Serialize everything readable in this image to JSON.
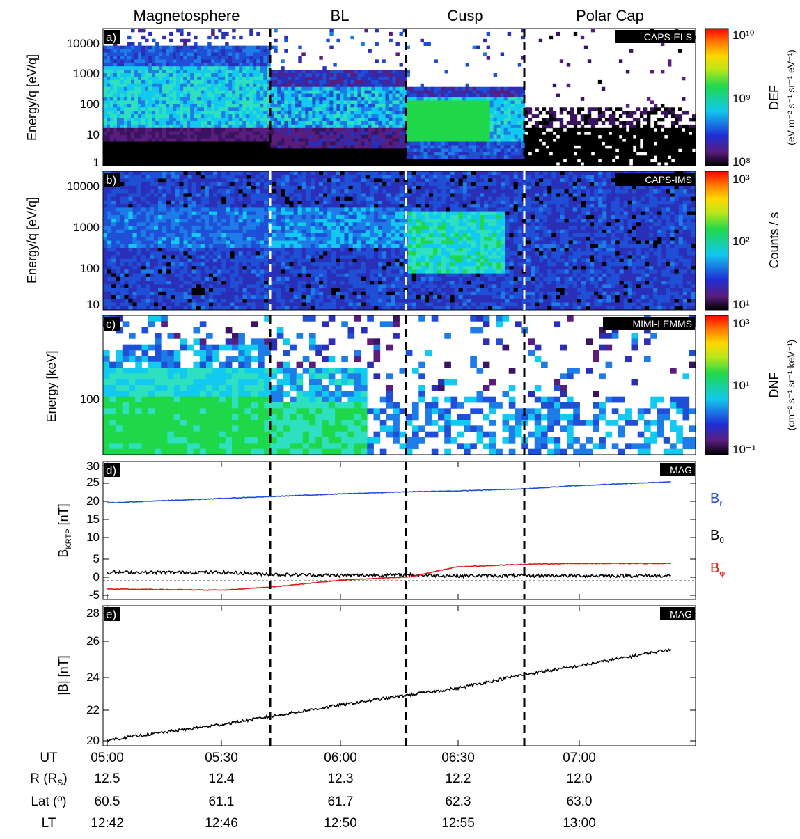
{
  "regions": [
    "Magnetosphere",
    "BL",
    "Cusp",
    "Polar Cap"
  ],
  "panels": [
    {
      "id": "a",
      "tag": "a)",
      "instrument": "CAPS-ELS",
      "ylabel": "Energy/q [eV/q]",
      "yticks": [
        "10000",
        "1000",
        "100",
        "10",
        "1"
      ],
      "colorbar": {
        "label": "DEF",
        "units": "(eV m⁻² s⁻¹ sr⁻¹ eV⁻¹)",
        "ticks": [
          "10¹⁰",
          "10⁹",
          "10⁸"
        ]
      }
    },
    {
      "id": "b",
      "tag": "b)",
      "instrument": "CAPS-IMS",
      "ylabel": "Energy/q [eV/q]",
      "yticks": [
        "10000",
        "1000",
        "100",
        "10"
      ],
      "colorbar": {
        "label": "Counts / s",
        "units": "",
        "ticks": [
          "10³",
          "10²",
          "10¹"
        ]
      }
    },
    {
      "id": "c",
      "tag": "c)",
      "instrument": "MIMI-LEMMS",
      "ylabel": "Energy [keV]",
      "yticks": [
        "100"
      ],
      "colorbar": {
        "label": "DNF",
        "units": "(cm⁻² s⁻¹ sr⁻¹ keV⁻¹)",
        "ticks": [
          "10³",
          "10¹",
          "10⁻¹"
        ]
      }
    },
    {
      "id": "d",
      "tag": "d)",
      "instrument": "MAG",
      "ylabel": "B",
      "ylabel_sub": "KRTP",
      "ylabel_unit": " [nT]",
      "yticks": [
        "30",
        "25",
        "20",
        "15",
        "10",
        "5",
        "0",
        "-5"
      ]
    },
    {
      "id": "e",
      "tag": "e)",
      "instrument": "MAG",
      "ylabel": "|B| [nT]",
      "yticks": [
        "28",
        "26",
        "24",
        "22",
        "20"
      ]
    }
  ],
  "legend_mag": [
    {
      "name": "B",
      "sub": "r",
      "color": "#1f4fd6"
    },
    {
      "name": "B",
      "sub": "θ",
      "color": "#000000"
    },
    {
      "name": "B",
      "sub": "φ",
      "color": "#e01818"
    }
  ],
  "xaxis": {
    "rows": [
      {
        "label": "UT",
        "values": [
          "05:00",
          "05:30",
          "06:00",
          "06:30",
          "07:00"
        ]
      },
      {
        "label": "R (R",
        "label_sub": "S",
        "label_end": ")",
        "values": [
          "12.5",
          "12.4",
          "12.3",
          "12.2",
          "12.0"
        ]
      },
      {
        "label": "Lat (º)",
        "values": [
          "60.5",
          "61.1",
          "61.7",
          "62.3",
          "63.0"
        ]
      },
      {
        "label": "LT",
        "values": [
          "12:42",
          "12:46",
          "12:50",
          "12:55",
          "13:00"
        ]
      }
    ]
  },
  "colors": {
    "br": "#1f4fd6",
    "bth": "#000000",
    "bphi": "#e01818"
  },
  "chart_data": [
    {
      "type": "line",
      "panel": "d",
      "xlabel": "UT",
      "ylabel": "B_KRTP [nT]",
      "ylim": [
        -7,
        30
      ],
      "x": [
        "05:00",
        "05:30",
        "05:45",
        "06:00",
        "06:18",
        "06:30",
        "06:48",
        "07:00",
        "07:25"
      ],
      "series": [
        {
          "name": "B_r",
          "values": [
            20.0,
            21.2,
            21.8,
            22.4,
            23.0,
            23.2,
            23.8,
            24.6,
            25.7
          ]
        },
        {
          "name": "B_θ",
          "values": [
            1.2,
            1.2,
            0.6,
            0.4,
            0.5,
            0.3,
            0.3,
            0.3,
            0.3
          ]
        },
        {
          "name": "B_φ",
          "values": [
            -3.3,
            -3.6,
            -2.5,
            -0.9,
            0.0,
            2.7,
            3.4,
            3.6,
            3.6
          ]
        }
      ]
    },
    {
      "type": "line",
      "panel": "e",
      "xlabel": "UT",
      "ylabel": "|B| [nT]",
      "ylim": [
        19.8,
        28
      ],
      "x": [
        "05:00",
        "05:15",
        "05:30",
        "05:45",
        "06:00",
        "06:18",
        "06:30",
        "06:48",
        "07:00",
        "07:25"
      ],
      "series": [
        {
          "name": "|B|",
          "values": [
            20.05,
            20.55,
            21.05,
            21.65,
            22.25,
            22.9,
            23.3,
            24.2,
            24.65,
            25.75
          ]
        }
      ]
    }
  ]
}
